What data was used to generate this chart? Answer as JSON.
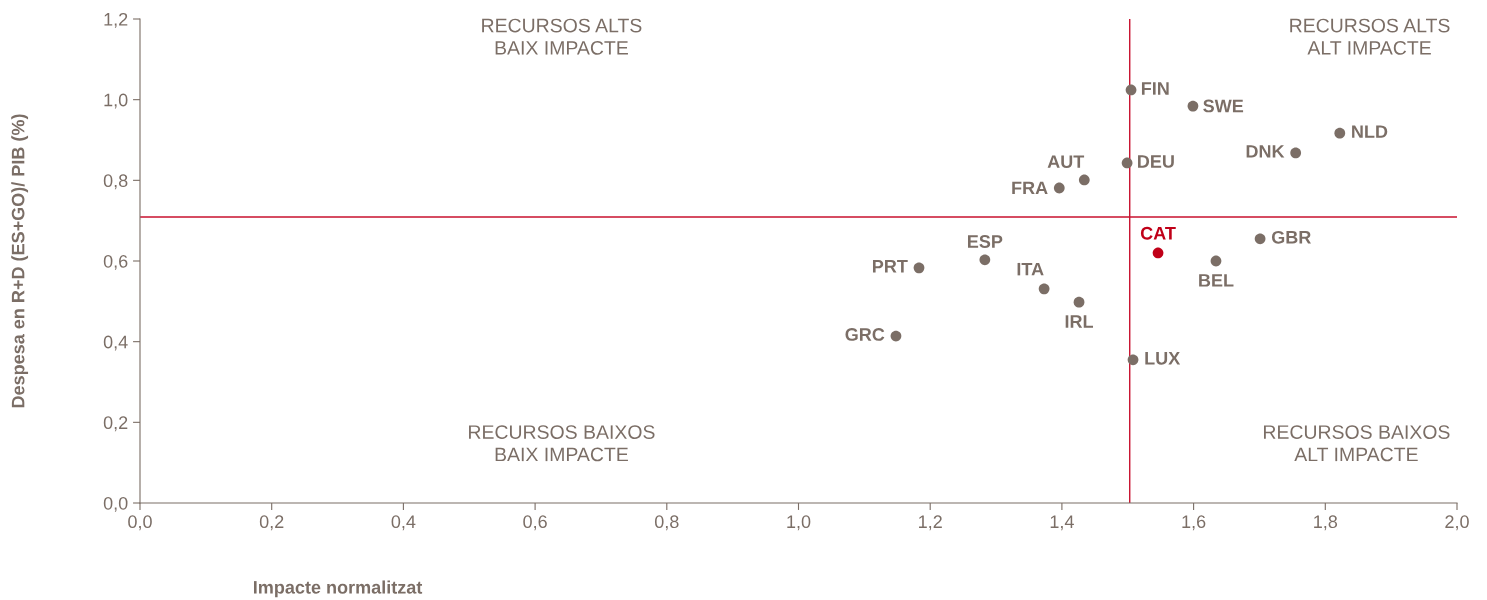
{
  "chart_data": {
    "type": "scatter",
    "xlabel": "Impacte normalitzat",
    "ylabel": "Despesa en R+D (ES+GO)/ PIB (%)",
    "xlim": [
      0,
      2.0
    ],
    "ylim": [
      0,
      1.2
    ],
    "xticks": [
      {
        "value": 0,
        "label": "0,0"
      },
      {
        "value": 0.2,
        "label": "0,2"
      },
      {
        "value": 0.4,
        "label": "0,4"
      },
      {
        "value": 0.6,
        "label": "0,6"
      },
      {
        "value": 0.8,
        "label": "0,8"
      },
      {
        "value": 1.0,
        "label": "1,0"
      },
      {
        "value": 1.2,
        "label": "1,2"
      },
      {
        "value": 1.4,
        "label": "1,4"
      },
      {
        "value": 1.6,
        "label": "1,6"
      },
      {
        "value": 1.8,
        "label": "1,8"
      },
      {
        "value": 2.0,
        "label": "2,0"
      }
    ],
    "yticks": [
      {
        "value": 0,
        "label": "0,0"
      },
      {
        "value": 0.2,
        "label": "0,2"
      },
      {
        "value": 0.4,
        "label": "0,4"
      },
      {
        "value": 0.6,
        "label": "0,6"
      },
      {
        "value": 0.8,
        "label": "0,8"
      },
      {
        "value": 1.0,
        "label": "1,0"
      },
      {
        "value": 1.2,
        "label": "1,2"
      }
    ],
    "grid": false,
    "legend": false,
    "marker": "circle",
    "ref_lines": [
      {
        "axis": "x",
        "value": 1.503,
        "color": "#c8102e"
      },
      {
        "axis": "y",
        "value": 0.709,
        "color": "#c8102e"
      }
    ],
    "annotations": [
      "RECURSOS ALTS\nBAIX IMPACTE",
      "RECURSOS ALTS\nALT IMPACTE",
      "RECURSOS BAIXOS\nBAIX IMPACTE",
      "RECURSOS BAIXOS\nALT IMPACTE"
    ],
    "series": [
      {
        "name": "FIN",
        "color": "#7b6e66",
        "x": [
          1.505
        ],
        "values": [
          1.024
        ]
      },
      {
        "name": "SWE",
        "color": "#7b6e66",
        "x": [
          1.599
        ],
        "values": [
          0.984
        ]
      },
      {
        "name": "NLD",
        "color": "#7b6e66",
        "x": [
          1.822
        ],
        "values": [
          0.917
        ]
      },
      {
        "name": "DNK",
        "color": "#7b6e66",
        "x": [
          1.755
        ],
        "values": [
          0.868
        ]
      },
      {
        "name": "DEU",
        "color": "#7b6e66",
        "x": [
          1.499
        ],
        "values": [
          0.843
        ]
      },
      {
        "name": "AUT",
        "color": "#7b6e66",
        "x": [
          1.434
        ],
        "values": [
          0.801
        ]
      },
      {
        "name": "FRA",
        "color": "#7b6e66",
        "x": [
          1.396
        ],
        "values": [
          0.781
        ]
      },
      {
        "name": "GBR",
        "color": "#7b6e66",
        "x": [
          1.701
        ],
        "values": [
          0.655
        ]
      },
      {
        "name": "CAT",
        "color": "#c00018",
        "x": [
          1.546
        ],
        "values": [
          0.62
        ]
      },
      {
        "name": "BEL",
        "color": "#7b6e66",
        "x": [
          1.634
        ],
        "values": [
          0.6
        ]
      },
      {
        "name": "ESP",
        "color": "#7b6e66",
        "x": [
          1.283
        ],
        "values": [
          0.603
        ]
      },
      {
        "name": "PRT",
        "color": "#7b6e66",
        "x": [
          1.183
        ],
        "values": [
          0.583
        ]
      },
      {
        "name": "ITA",
        "color": "#7b6e66",
        "x": [
          1.373
        ],
        "values": [
          0.531
        ]
      },
      {
        "name": "IRL",
        "color": "#7b6e66",
        "x": [
          1.426
        ],
        "values": [
          0.498
        ]
      },
      {
        "name": "GRC",
        "color": "#7b6e66",
        "x": [
          1.148
        ],
        "values": [
          0.414
        ]
      },
      {
        "name": "LUX",
        "color": "#7b6e66",
        "x": [
          1.508
        ],
        "values": [
          0.355
        ]
      }
    ]
  }
}
